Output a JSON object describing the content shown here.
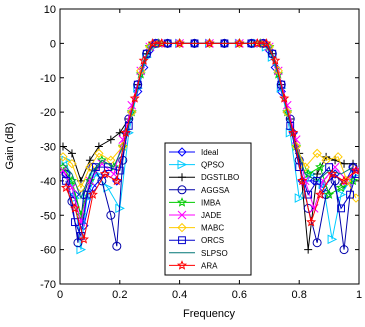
{
  "chart_data": {
    "type": "line",
    "title": "",
    "xlabel": "Frequency",
    "ylabel": "Gain (dB)",
    "xlim": [
      0,
      1
    ],
    "ylim": [
      -70,
      10
    ],
    "xticks": [
      0,
      0.2,
      0.4,
      0.6,
      0.8,
      1
    ],
    "xtick_labels": [
      "0",
      "0.2",
      "0.4",
      "0.6",
      "0.8",
      "1"
    ],
    "yticks": [
      10,
      0,
      -10,
      -20,
      -30,
      -40,
      -50,
      -60,
      -70
    ],
    "ytick_labels": [
      "10",
      "0",
      "-10",
      "-20",
      "-30",
      "-40",
      "-50",
      "-60",
      "-70"
    ],
    "grid": false,
    "legend_position": "bottom-center",
    "series": [
      {
        "name": "Ideal",
        "color": "#0000ff",
        "marker": "diamond",
        "x": [
          0.02,
          0.05,
          0.08,
          0.11,
          0.15,
          0.19,
          0.22,
          0.24,
          0.26,
          0.28,
          0.3,
          0.32,
          0.36,
          0.4,
          0.45,
          0.5,
          0.55,
          0.6,
          0.64,
          0.68,
          0.7,
          0.72,
          0.74,
          0.76,
          0.78,
          0.81,
          0.85,
          0.88,
          0.92,
          0.95,
          0.98
        ],
        "y": [
          -38,
          -44,
          -53,
          -42,
          -38,
          -40,
          -26,
          -20,
          -14,
          -7,
          -2,
          0,
          0,
          0,
          0,
          0,
          0,
          0,
          0,
          0,
          -2,
          -7,
          -14,
          -20,
          -26,
          -40,
          -40,
          -42,
          -38,
          -41,
          -36
        ]
      },
      {
        "name": "QPSO",
        "color": "#00ccff",
        "marker": "triangle-right",
        "x": [
          0.02,
          0.05,
          0.07,
          0.09,
          0.12,
          0.16,
          0.2,
          0.23,
          0.26,
          0.29,
          0.31,
          0.34,
          0.4,
          0.5,
          0.6,
          0.66,
          0.69,
          0.71,
          0.74,
          0.77,
          0.8,
          0.84,
          0.88,
          0.91,
          0.94,
          0.97,
          0.99
        ],
        "y": [
          -34,
          -45,
          -60,
          -45,
          -38,
          -42,
          -48,
          -26,
          -13,
          -4,
          -1,
          0,
          0,
          0,
          0,
          0,
          -1,
          -4,
          -13,
          -26,
          -45,
          -38,
          -41,
          -57,
          -44,
          -40,
          -38
        ]
      },
      {
        "name": "DGSTLBO",
        "color": "#000000",
        "marker": "plus",
        "x": [
          0.01,
          0.04,
          0.07,
          0.1,
          0.13,
          0.17,
          0.2,
          0.23,
          0.26,
          0.29,
          0.32,
          0.36,
          0.45,
          0.55,
          0.64,
          0.68,
          0.71,
          0.74,
          0.77,
          0.8,
          0.83,
          0.86,
          0.89,
          0.92,
          0.95,
          0.98
        ],
        "y": [
          -30,
          -32,
          -40,
          -34,
          -30,
          -28,
          -26,
          -22,
          -12,
          -3,
          0,
          0,
          0,
          0,
          0,
          0,
          -3,
          -12,
          -22,
          -32,
          -60,
          -38,
          -33,
          -34,
          -35,
          -35
        ]
      },
      {
        "name": "AGGSA",
        "color": "#0000aa",
        "marker": "circle",
        "x": [
          0.02,
          0.04,
          0.06,
          0.08,
          0.11,
          0.14,
          0.17,
          0.19,
          0.21,
          0.23,
          0.26,
          0.29,
          0.32,
          0.36,
          0.45,
          0.55,
          0.64,
          0.68,
          0.71,
          0.74,
          0.77,
          0.8,
          0.83,
          0.86,
          0.89,
          0.92,
          0.95,
          0.98
        ],
        "y": [
          -38,
          -46,
          -58,
          -44,
          -36,
          -40,
          -50,
          -59,
          -34,
          -22,
          -12,
          -3,
          0,
          0,
          0,
          0,
          0,
          0,
          -3,
          -12,
          -22,
          -34,
          -48,
          -58,
          -44,
          -40,
          -60,
          -36
        ]
      },
      {
        "name": "IMBA",
        "color": "#00cc00",
        "marker": "star",
        "x": [
          0.01,
          0.04,
          0.07,
          0.1,
          0.14,
          0.18,
          0.21,
          0.24,
          0.27,
          0.3,
          0.33,
          0.4,
          0.5,
          0.6,
          0.67,
          0.7,
          0.73,
          0.76,
          0.79,
          0.83,
          0.87,
          0.9,
          0.94,
          0.98
        ],
        "y": [
          -36,
          -40,
          -50,
          -40,
          -34,
          -36,
          -30,
          -20,
          -9,
          -1,
          0,
          0,
          0,
          0,
          0,
          -1,
          -9,
          -20,
          -30,
          -38,
          -36,
          -44,
          -42,
          -40
        ]
      },
      {
        "name": "JADE",
        "color": "#ff00ff",
        "marker": "x",
        "x": [
          0.01,
          0.04,
          0.07,
          0.1,
          0.14,
          0.18,
          0.21,
          0.24,
          0.27,
          0.3,
          0.33,
          0.4,
          0.5,
          0.6,
          0.67,
          0.7,
          0.73,
          0.76,
          0.79,
          0.82,
          0.85,
          0.88,
          0.92,
          0.96,
          0.99
        ],
        "y": [
          -37,
          -42,
          -52,
          -40,
          -35,
          -38,
          -28,
          -18,
          -8,
          -1,
          0,
          0,
          0,
          0,
          0,
          -1,
          -8,
          -18,
          -28,
          -40,
          -48,
          -40,
          -36,
          -40,
          -37
        ]
      },
      {
        "name": "MABC",
        "color": "#ffcc00",
        "marker": "diamond",
        "x": [
          0.01,
          0.04,
          0.07,
          0.1,
          0.13,
          0.17,
          0.21,
          0.24,
          0.27,
          0.3,
          0.33,
          0.4,
          0.5,
          0.6,
          0.67,
          0.7,
          0.73,
          0.76,
          0.79,
          0.82,
          0.86,
          0.89,
          0.93,
          0.96,
          0.99
        ],
        "y": [
          -33,
          -35,
          -42,
          -36,
          -32,
          -34,
          -30,
          -20,
          -8,
          -1,
          0,
          0,
          0,
          0,
          0,
          -1,
          -8,
          -20,
          -30,
          -36,
          -32,
          -34,
          -33,
          -40,
          -45
        ]
      },
      {
        "name": "ORCS",
        "color": "#0000cc",
        "marker": "square",
        "x": [
          0.02,
          0.05,
          0.07,
          0.09,
          0.12,
          0.16,
          0.2,
          0.23,
          0.26,
          0.29,
          0.32,
          0.36,
          0.45,
          0.55,
          0.64,
          0.68,
          0.71,
          0.74,
          0.77,
          0.8,
          0.83,
          0.86,
          0.9,
          0.94,
          0.97,
          0.99
        ],
        "y": [
          -40,
          -52,
          -56,
          -44,
          -36,
          -36,
          -37,
          -24,
          -12,
          -3,
          0,
          0,
          0,
          0,
          0,
          0,
          -3,
          -12,
          -24,
          -36,
          -44,
          -40,
          -36,
          -48,
          -44,
          -38
        ]
      },
      {
        "name": "SLPSO",
        "color": "#007777",
        "marker": "none",
        "x": [
          0.01,
          0.04,
          0.07,
          0.1,
          0.14,
          0.18,
          0.21,
          0.24,
          0.27,
          0.3,
          0.33,
          0.4,
          0.5,
          0.6,
          0.67,
          0.7,
          0.73,
          0.76,
          0.79,
          0.82,
          0.86,
          0.9,
          0.94,
          0.98
        ],
        "y": [
          -35,
          -38,
          -45,
          -38,
          -34,
          -36,
          -30,
          -20,
          -9,
          -1,
          0,
          0,
          0,
          0,
          0,
          -1,
          -9,
          -20,
          -30,
          -38,
          -40,
          -37,
          -38,
          -36
        ]
      },
      {
        "name": "ARA",
        "color": "#ff0000",
        "marker": "star",
        "x": [
          0.02,
          0.05,
          0.08,
          0.11,
          0.15,
          0.19,
          0.22,
          0.25,
          0.28,
          0.31,
          0.34,
          0.4,
          0.5,
          0.6,
          0.66,
          0.69,
          0.72,
          0.75,
          0.78,
          0.81,
          0.84,
          0.87,
          0.91,
          0.95,
          0.99
        ],
        "y": [
          -42,
          -48,
          -57,
          -44,
          -38,
          -40,
          -26,
          -16,
          -5,
          0,
          0,
          0,
          0,
          0,
          0,
          0,
          -5,
          -16,
          -26,
          -40,
          -52,
          -44,
          -38,
          -40,
          -37
        ]
      }
    ]
  }
}
